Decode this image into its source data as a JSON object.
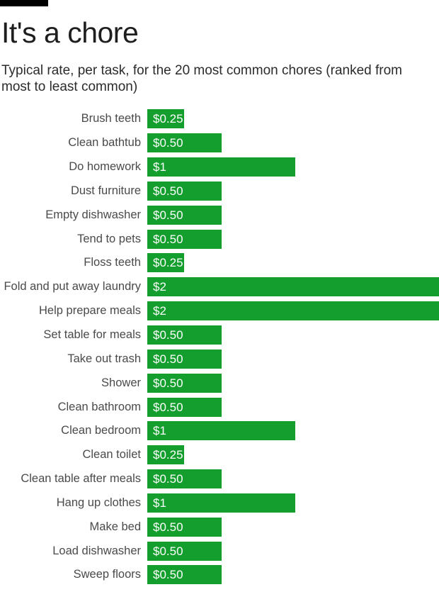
{
  "header": {
    "title": "It's a chore",
    "subtitle": "Typical rate, per task, for the 20 most common chores (ranked from most to least common)"
  },
  "colors": {
    "bar_green": "#149e2d",
    "kicker_black": "#000000",
    "title_text": "#1e1e1e",
    "subtitle_text": "#2b2b2b",
    "category_text": "#4a4a4a",
    "value_text": "#ffffff",
    "background": "#ffffff"
  },
  "chart_data": {
    "type": "bar",
    "orientation": "horizontal",
    "title": "It's a chore",
    "subtitle": "Typical rate, per task, for the 20 most common chores (ranked from most to least common)",
    "categories": [
      "Brush teeth",
      "Clean bathtub",
      "Do homework",
      "Dust furniture",
      "Empty dishwasher",
      "Tend to pets",
      "Floss teeth",
      "Fold and put away laundry",
      "Help prepare meals",
      "Set table for meals",
      "Take out trash",
      "Shower",
      "Clean bathroom",
      "Clean bedroom",
      "Clean toilet",
      "Clean table after meals",
      "Hang up clothes",
      "Make bed",
      "Load dishwasher",
      "Sweep floors"
    ],
    "values": [
      0.25,
      0.5,
      1,
      0.5,
      0.5,
      0.5,
      0.25,
      2,
      2,
      0.5,
      0.5,
      0.5,
      0.5,
      1,
      0.25,
      0.5,
      1,
      0.5,
      0.5,
      0.5
    ],
    "value_labels": [
      "$0.25",
      "$0.50",
      "$1",
      "$0.50",
      "$0.50",
      "$0.50",
      "$0.25",
      "$2",
      "$2",
      "$0.50",
      "$0.50",
      "$0.50",
      "$0.50",
      "$1",
      "$0.25",
      "$0.50",
      "$1",
      "$0.50",
      "$0.50",
      "$0.50"
    ],
    "xlim": [
      0,
      2
    ],
    "grid": false,
    "legend": false,
    "value_labels_position": "inside-left",
    "bar_color": "#149e2d"
  }
}
